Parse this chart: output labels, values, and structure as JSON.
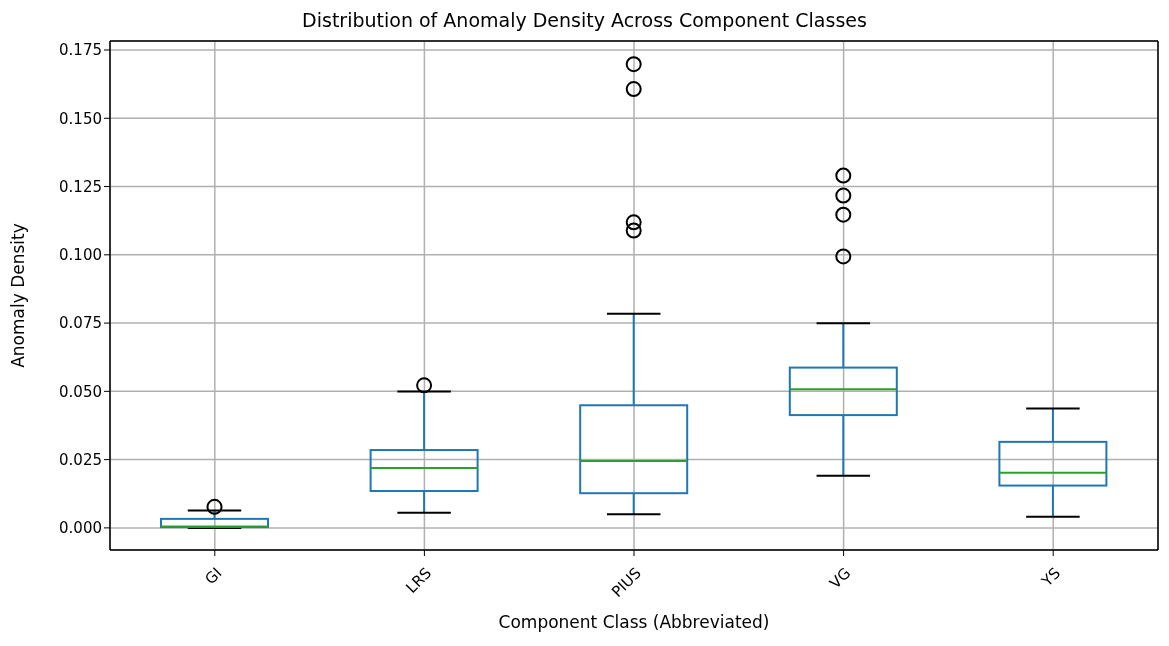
{
  "chart_data": {
    "type": "box",
    "title": "Distribution of Anomaly Density Across Component Classes",
    "xlabel": "Component Class (Abbreviated)",
    "ylabel": "Anomaly Density",
    "categories": [
      "GI",
      "LRS",
      "PIUS",
      "VG",
      "YS"
    ],
    "color": "#1f77b4",
    "boxes": [
      {
        "low": 0.0,
        "q1": 0.0003,
        "median": 0.0005,
        "q3": 0.0033,
        "high": 0.0064,
        "outliers": [
          0.0077
        ]
      },
      {
        "low": 0.0055,
        "q1": 0.0135,
        "median": 0.0219,
        "q3": 0.0285,
        "high": 0.0499,
        "outliers": [
          0.0522
        ]
      },
      {
        "low": 0.005,
        "q1": 0.0127,
        "median": 0.0245,
        "q3": 0.0449,
        "high": 0.0784,
        "outliers": [
          0.1698,
          0.1607,
          0.1119,
          0.1089
        ]
      },
      {
        "low": 0.0191,
        "q1": 0.0413,
        "median": 0.0508,
        "q3": 0.0587,
        "high": 0.0749,
        "outliers": [
          0.129,
          0.1217,
          0.1147,
          0.0994
        ]
      },
      {
        "low": 0.0041,
        "q1": 0.0155,
        "median": 0.0202,
        "q3": 0.0315,
        "high": 0.0437
      }
    ],
    "ylim": [
      -0.0081,
      0.1783
    ],
    "yticks": [
      {
        "value": 0,
        "label": "0.000"
      },
      {
        "value": 0.025,
        "label": "0.025"
      },
      {
        "value": 0.05,
        "label": "0.050"
      },
      {
        "value": 0.075,
        "label": "0.075"
      },
      {
        "value": 0.1,
        "label": "0.100"
      },
      {
        "value": 0.125,
        "label": "0.125"
      },
      {
        "value": 0.15,
        "label": "0.150"
      },
      {
        "value": 0.175,
        "label": "0.175"
      }
    ],
    "grid": true
  }
}
